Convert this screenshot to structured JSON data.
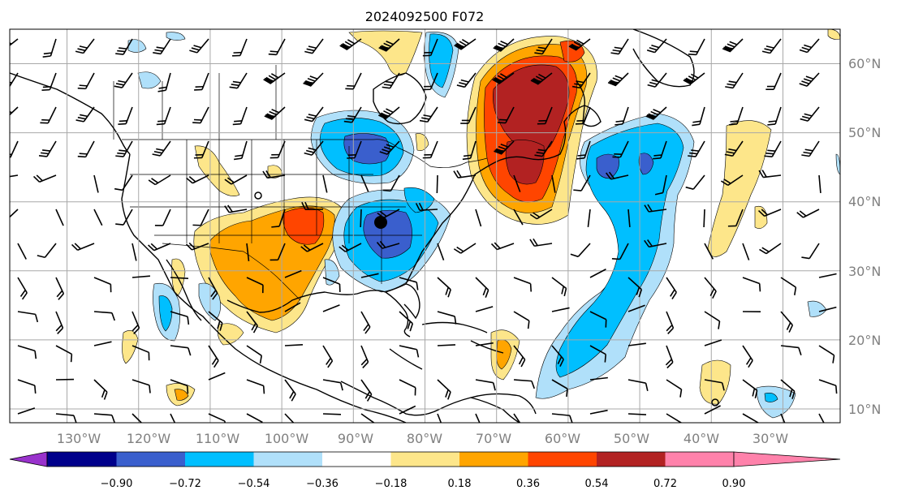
{
  "title": "2024092500 F072",
  "lon_labels": [
    "130°W",
    "120°W",
    "110°W",
    "100°W",
    "90°W",
    "80°W",
    "70°W",
    "60°W",
    "50°W",
    "40°W",
    "30°W"
  ],
  "lat_labels": [
    "60°N",
    "50°N",
    "40°N",
    "30°N",
    "20°N",
    "10°N"
  ],
  "colorbar": {
    "ticks": [
      "−0.90",
      "−0.72",
      "−0.54",
      "−0.36",
      "−0.18",
      "0.18",
      "0.36",
      "0.54",
      "0.72",
      "0.90"
    ],
    "colors": [
      "#9932cc",
      "#00008b",
      "#3a5fcd",
      "#00bfff",
      "#b0e0fa",
      "#ffffff",
      "#fde68a",
      "#ffa500",
      "#ff4500",
      "#b22222",
      "#ff82ab"
    ]
  },
  "fill_colors": {
    "strong_neg": "#3a5fcd",
    "mod_neg": "#00bfff",
    "weak_neg": "#b0e0fa",
    "weak_pos": "#fde68a",
    "mod_pos": "#ffa500",
    "strong_pos": "#ff4500",
    "max_pos": "#b22222"
  },
  "map": {
    "lon_range": [
      -138,
      -22
    ],
    "lat_range": [
      8,
      65
    ],
    "grid": true,
    "projection": "PlateCarree"
  }
}
